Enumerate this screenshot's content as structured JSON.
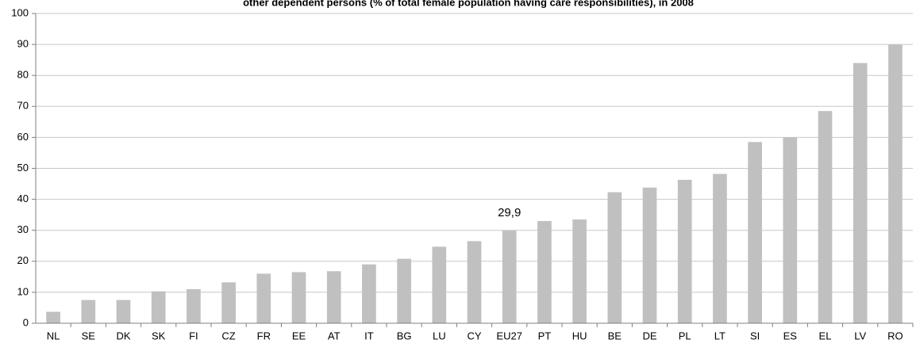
{
  "chart_data": {
    "type": "bar",
    "title": "other dependent persons  (% of total female population having care responsibilities), in 2008",
    "categories": [
      "NL",
      "SE",
      "DK",
      "SK",
      "FI",
      "CZ",
      "FR",
      "EE",
      "AT",
      "IT",
      "BG",
      "LU",
      "CY",
      "EU27",
      "PT",
      "HU",
      "BE",
      "DE",
      "PL",
      "LT",
      "SI",
      "ES",
      "EL",
      "LV",
      "RO"
    ],
    "values": [
      3.7,
      7.5,
      7.5,
      10.3,
      11,
      13.2,
      16,
      16.5,
      16.8,
      19,
      20.8,
      24.7,
      26.5,
      29.9,
      33,
      33.5,
      42.3,
      43.8,
      46.3,
      48.2,
      58.5,
      60,
      68.5,
      84,
      90
    ],
    "value_labels": [
      null,
      null,
      null,
      null,
      null,
      null,
      null,
      null,
      null,
      null,
      null,
      null,
      null,
      "29,9",
      null,
      null,
      null,
      null,
      null,
      null,
      null,
      null,
      null,
      null,
      null
    ],
    "color": "#c0c0c0",
    "ylim": [
      0,
      100
    ],
    "yticks": [
      0,
      10,
      20,
      30,
      40,
      50,
      60,
      70,
      80,
      90,
      100
    ],
    "grid": true
  }
}
